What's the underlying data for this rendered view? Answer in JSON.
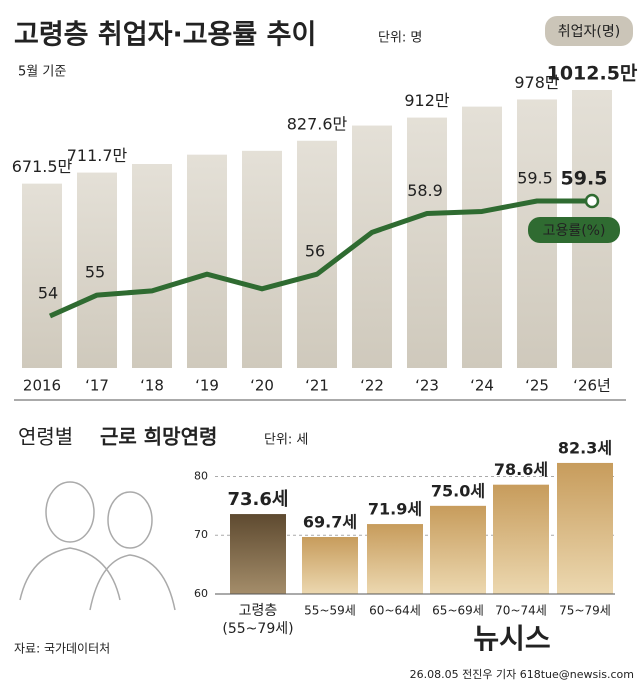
{
  "chart_data": [
    {
      "type": "bar_line",
      "title": "고령층 취업자·고용률 추이",
      "unit": "단위: 명",
      "note": "5월 기준",
      "categories": [
        "2016",
        "‘17",
        "‘18",
        "‘19",
        "‘20",
        "‘21",
        "‘22",
        "‘23",
        "‘24",
        "‘25",
        "‘26년"
      ],
      "series": [
        {
          "name": "취업자(명)",
          "kind": "bar",
          "color": "#d7d2c7",
          "values": [
            671.5,
            711.7,
            743,
            777,
            791,
            827.6,
            883,
            912,
            952,
            978,
            1012.5
          ],
          "value_labels": [
            "671.5만",
            "711.7만",
            null,
            null,
            null,
            "827.6만",
            null,
            "912만",
            null,
            "978만",
            "1012.5만"
          ]
        },
        {
          "name": "고용률(%)",
          "kind": "line",
          "color": "#2f6b31",
          "values": [
            54,
            55,
            55.2,
            56,
            55.3,
            56,
            58,
            58.9,
            59,
            59.5,
            59.5
          ],
          "value_labels": [
            "54",
            "55",
            null,
            null,
            null,
            "56",
            null,
            "58.9",
            null,
            "59.5",
            "59.5"
          ]
        }
      ]
    },
    {
      "type": "bar",
      "title": "연령별",
      "title_bold": "근로 희망연령",
      "unit": "단위: 세",
      "categories": [
        "고령층\n(55~79세)",
        "55~59세",
        "60~64세",
        "65~69세",
        "70~74세",
        "75~79세"
      ],
      "values": [
        73.6,
        69.7,
        71.9,
        75.0,
        78.6,
        82.3
      ],
      "value_labels": [
        "73.6세",
        "69.7세",
        "71.9세",
        "75.0세",
        "78.6세",
        "82.3세"
      ],
      "colors": [
        "#6f5b3e",
        "#c9a064",
        "#c9a064",
        "#c9a064",
        "#c9a064",
        "#c9a064"
      ],
      "ylim": [
        60,
        84.5
      ],
      "yticks": [
        60,
        70,
        80
      ],
      "grid": true
    }
  ],
  "source": "자료: 국가데이터처",
  "credit": "26.08.05 전진우 기자 618tue@newsis.com",
  "logo": "뉴시스"
}
